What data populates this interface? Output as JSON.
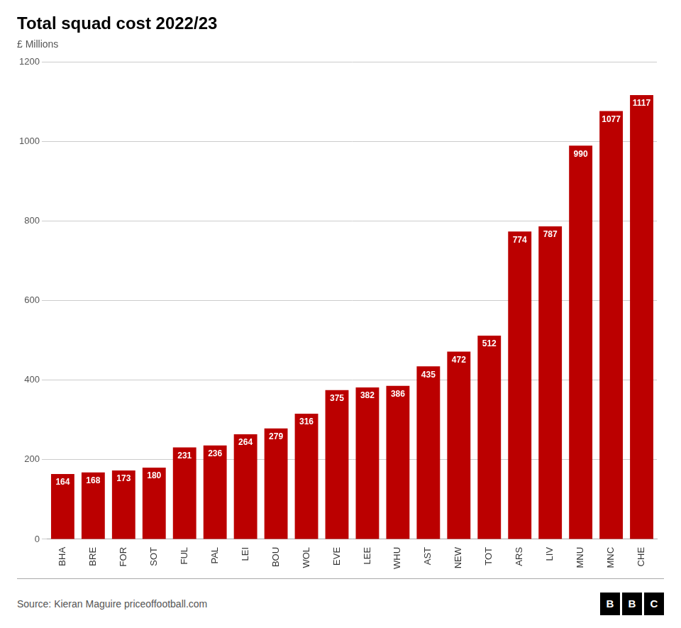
{
  "chart_data": {
    "type": "bar",
    "title": "Total squad cost 2022/23",
    "ylabel": "£ Millions",
    "categories": [
      "BHA",
      "BRE",
      "FOR",
      "SOT",
      "FUL",
      "PAL",
      "LEI",
      "BOU",
      "WOL",
      "EVE",
      "LEE",
      "WHU",
      "AST",
      "NEW",
      "TOT",
      "ARS",
      "LIV",
      "MNU",
      "MNC",
      "CHE"
    ],
    "values": [
      164,
      168,
      173,
      180,
      231,
      236,
      264,
      279,
      316,
      375,
      382,
      386,
      435,
      472,
      512,
      774,
      787,
      990,
      1077,
      1117
    ],
    "color": "#bb0000",
    "ylim": [
      0,
      1200
    ],
    "yticks": [
      0,
      200,
      400,
      600,
      800,
      1000,
      1200
    ],
    "grid": true,
    "data_labels": true,
    "annotations": [
      "Source: Kieran Maguire priceoffootball.com",
      "BBC"
    ]
  }
}
